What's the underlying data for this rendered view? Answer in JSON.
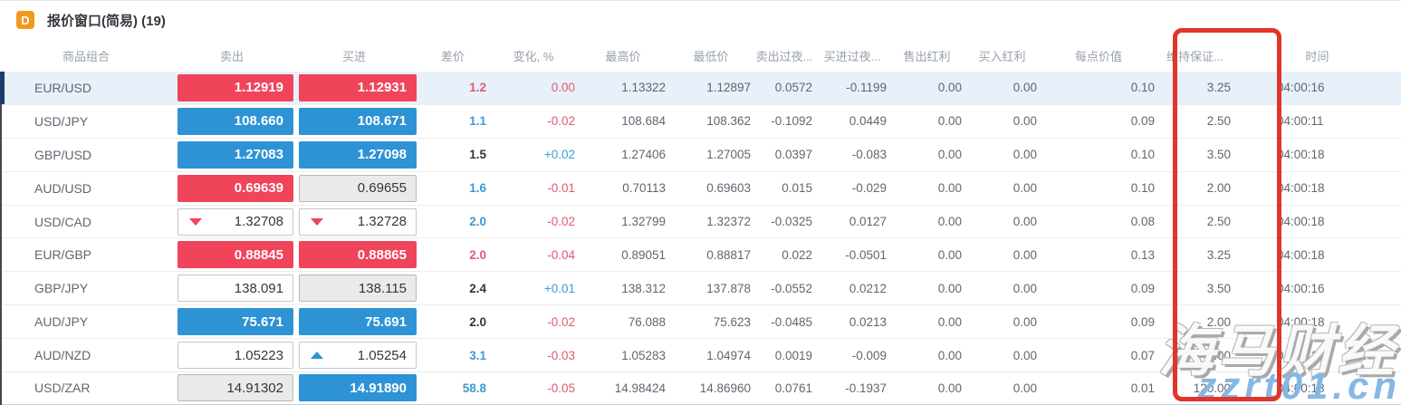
{
  "window": {
    "icon_letter": "D",
    "title": "报价窗口(简易) (19)"
  },
  "table": {
    "headers": [
      {
        "key": "symbol",
        "label": "商品组合"
      },
      {
        "key": "sell",
        "label": "卖出"
      },
      {
        "key": "buy",
        "label": "买进"
      },
      {
        "key": "spread",
        "label": "差价"
      },
      {
        "key": "change",
        "label": "变化, %"
      },
      {
        "key": "high",
        "label": "最高价"
      },
      {
        "key": "low",
        "label": "最低价"
      },
      {
        "key": "sell_overnight",
        "label": "卖出过夜..."
      },
      {
        "key": "buy_overnight",
        "label": "买进过夜..."
      },
      {
        "key": "sell_dividend",
        "label": "售出红利"
      },
      {
        "key": "buy_dividend",
        "label": "买入红利"
      },
      {
        "key": "point_value",
        "label": "每点价值"
      },
      {
        "key": "margin",
        "label": "维持保证..."
      },
      {
        "key": "time",
        "label": "时间"
      }
    ],
    "rows": [
      {
        "symbol": "EUR/USD",
        "selected": true,
        "sell": "1.12919",
        "sell_style": "red",
        "sell_arrow": "",
        "buy": "1.12931",
        "buy_style": "red",
        "buy_arrow": "",
        "spread": "1.2",
        "spread_color": "red",
        "change": "0.00",
        "change_color": "red",
        "high": "1.13322",
        "low": "1.12897",
        "sell_overnight": "0.0572",
        "buy_overnight": "-0.1199",
        "sell_dividend": "0.00",
        "buy_dividend": "0.00",
        "point_value": "0.10",
        "margin": "3.25",
        "time": "04:00:16"
      },
      {
        "symbol": "USD/JPY",
        "selected": false,
        "sell": "108.660",
        "sell_style": "blue",
        "sell_arrow": "",
        "buy": "108.671",
        "buy_style": "blue",
        "buy_arrow": "",
        "spread": "1.1",
        "spread_color": "blue",
        "change": "-0.02",
        "change_color": "red",
        "high": "108.684",
        "low": "108.362",
        "sell_overnight": "-0.1092",
        "buy_overnight": "0.0449",
        "sell_dividend": "0.00",
        "buy_dividend": "0.00",
        "point_value": "0.09",
        "margin": "2.50",
        "time": "04:00:11"
      },
      {
        "symbol": "GBP/USD",
        "selected": false,
        "sell": "1.27083",
        "sell_style": "blue",
        "sell_arrow": "",
        "buy": "1.27098",
        "buy_style": "blue",
        "buy_arrow": "",
        "spread": "1.5",
        "spread_color": "dark",
        "change": "+0.02",
        "change_color": "blue",
        "high": "1.27406",
        "low": "1.27005",
        "sell_overnight": "0.0397",
        "buy_overnight": "-0.083",
        "sell_dividend": "0.00",
        "buy_dividend": "0.00",
        "point_value": "0.10",
        "margin": "3.50",
        "time": "04:00:18"
      },
      {
        "symbol": "AUD/USD",
        "selected": false,
        "sell": "0.69639",
        "sell_style": "red",
        "sell_arrow": "",
        "buy": "0.69655",
        "buy_style": "gray",
        "buy_arrow": "",
        "spread": "1.6",
        "spread_color": "blue",
        "change": "-0.01",
        "change_color": "red",
        "high": "0.70113",
        "low": "0.69603",
        "sell_overnight": "0.015",
        "buy_overnight": "-0.029",
        "sell_dividend": "0.00",
        "buy_dividend": "0.00",
        "point_value": "0.10",
        "margin": "2.00",
        "time": "04:00:18"
      },
      {
        "symbol": "USD/CAD",
        "selected": false,
        "sell": "1.32708",
        "sell_style": "white",
        "sell_arrow": "down",
        "buy": "1.32728",
        "buy_style": "white",
        "buy_arrow": "down",
        "spread": "2.0",
        "spread_color": "blue",
        "change": "-0.02",
        "change_color": "red",
        "high": "1.32799",
        "low": "1.32372",
        "sell_overnight": "-0.0325",
        "buy_overnight": "0.0127",
        "sell_dividend": "0.00",
        "buy_dividend": "0.00",
        "point_value": "0.08",
        "margin": "2.50",
        "time": "04:00:18"
      },
      {
        "symbol": "EUR/GBP",
        "selected": false,
        "sell": "0.88845",
        "sell_style": "red",
        "sell_arrow": "",
        "buy": "0.88865",
        "buy_style": "red",
        "buy_arrow": "",
        "spread": "2.0",
        "spread_color": "red",
        "change": "-0.04",
        "change_color": "red",
        "high": "0.89051",
        "low": "0.88817",
        "sell_overnight": "0.022",
        "buy_overnight": "-0.0501",
        "sell_dividend": "0.00",
        "buy_dividend": "0.00",
        "point_value": "0.13",
        "margin": "3.25",
        "time": "04:00:18"
      },
      {
        "symbol": "GBP/JPY",
        "selected": false,
        "sell": "138.091",
        "sell_style": "white",
        "sell_arrow": "",
        "buy": "138.115",
        "buy_style": "gray",
        "buy_arrow": "",
        "spread": "2.4",
        "spread_color": "dark",
        "change": "+0.01",
        "change_color": "blue",
        "high": "138.312",
        "low": "137.878",
        "sell_overnight": "-0.0552",
        "buy_overnight": "0.0212",
        "sell_dividend": "0.00",
        "buy_dividend": "0.00",
        "point_value": "0.09",
        "margin": "3.50",
        "time": "04:00:16"
      },
      {
        "symbol": "AUD/JPY",
        "selected": false,
        "sell": "75.671",
        "sell_style": "blue",
        "sell_arrow": "",
        "buy": "75.691",
        "buy_style": "blue",
        "buy_arrow": "",
        "spread": "2.0",
        "spread_color": "dark",
        "change": "-0.02",
        "change_color": "red",
        "high": "76.088",
        "low": "75.623",
        "sell_overnight": "-0.0485",
        "buy_overnight": "0.0213",
        "sell_dividend": "0.00",
        "buy_dividend": "0.00",
        "point_value": "0.09",
        "margin": "2.00",
        "time": "04:00:18"
      },
      {
        "symbol": "AUD/NZD",
        "selected": false,
        "sell": "1.05223",
        "sell_style": "white",
        "sell_arrow": "",
        "buy": "1.05254",
        "buy_style": "white",
        "buy_arrow": "up",
        "spread": "3.1",
        "spread_color": "blue",
        "change": "-0.03",
        "change_color": "red",
        "high": "1.05283",
        "low": "1.04974",
        "sell_overnight": "0.0019",
        "buy_overnight": "-0.009",
        "sell_dividend": "0.00",
        "buy_dividend": "0.00",
        "point_value": "0.07",
        "margin": "2.00",
        "time": "04:00:18"
      },
      {
        "symbol": "USD/ZAR",
        "selected": false,
        "sell": "14.91302",
        "sell_style": "gray",
        "sell_arrow": "",
        "buy": "14.91890",
        "buy_style": "blue",
        "buy_arrow": "",
        "spread": "58.8",
        "spread_color": "blue",
        "change": "-0.05",
        "change_color": "red",
        "high": "14.98424",
        "low": "14.86960",
        "sell_overnight": "0.0761",
        "buy_overnight": "-0.1937",
        "sell_dividend": "0.00",
        "buy_dividend": "0.00",
        "point_value": "0.01",
        "margin": "120.00",
        "time": "04:00:18"
      }
    ]
  },
  "annotation": {
    "type": "red-rectangle",
    "highlighted_column": "维持保证...",
    "color": "#e2342a"
  },
  "watermark": {
    "text": "海马财经",
    "url": "zzrt01.cn"
  },
  "colors": {
    "up_cell": "#2e93d5",
    "down_cell": "#f0445b",
    "up_text": "#3d9bd5",
    "down_text": "#e05a70",
    "selected_row_bg": "#e8f0fa",
    "selected_row_bar": "#1c3c6d",
    "icon_orange": "#f09a1d"
  }
}
